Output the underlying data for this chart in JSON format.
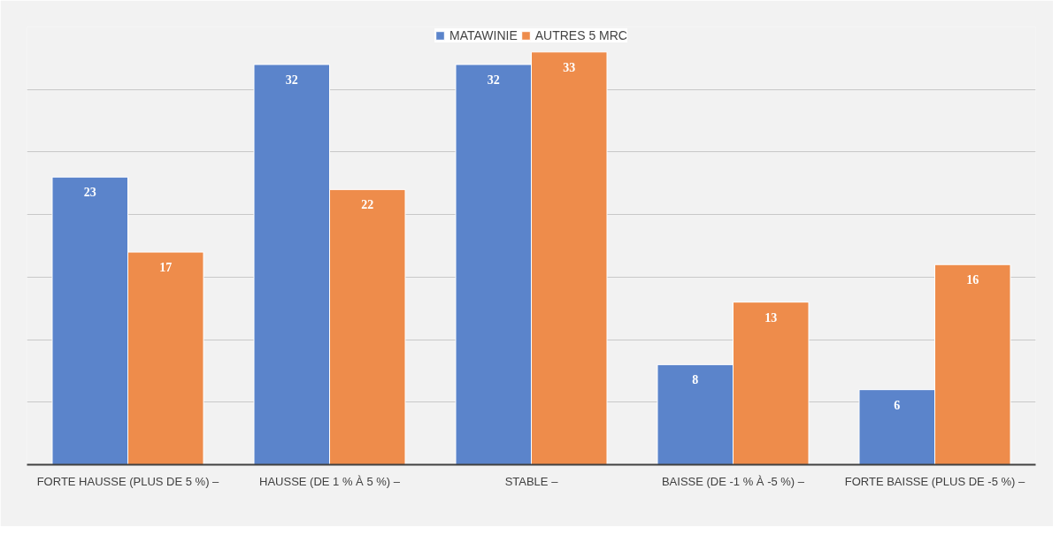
{
  "chart_data": {
    "type": "bar",
    "categories": [
      "FORTE HAUSSE (PLUS DE 5 %) –",
      "HAUSSE (DE 1 % À 5 %) –",
      "STABLE –",
      "BAISSE (DE -1 % À -5 %) –",
      "FORTE BAISSE (PLUS DE -5 %) –"
    ],
    "series": [
      {
        "name": "MATAWINIE",
        "color": "#5b84cb",
        "values": [
          23,
          32,
          32,
          8,
          6
        ]
      },
      {
        "name": "AUTRES 5 MRC",
        "color": "#ee8c4b",
        "values": [
          17,
          22,
          33,
          13,
          16
        ]
      }
    ],
    "ylim": [
      0,
      35
    ],
    "yticks": [
      {
        "value": 0,
        "label": null
      },
      {
        "value": 5,
        "label": null
      },
      {
        "value": 10,
        "label": null
      },
      {
        "value": 15,
        "label": null
      },
      {
        "value": 20,
        "label": null
      },
      {
        "value": 25,
        "label": null
      },
      {
        "value": 30,
        "label": null
      },
      {
        "value": 35,
        "label": null
      }
    ],
    "tick_labels": "x",
    "grid": "y",
    "legend": "top",
    "data_labels": true
  }
}
